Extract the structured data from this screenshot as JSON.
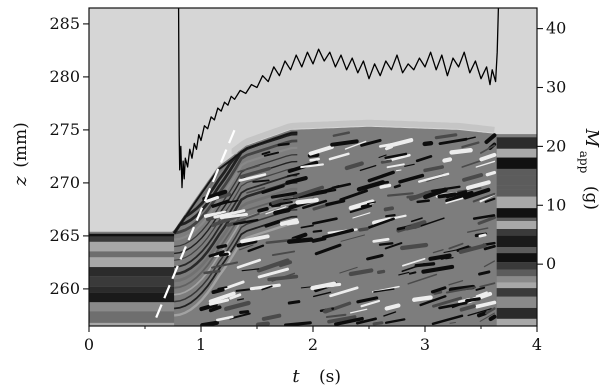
{
  "chart_data": {
    "type": "line",
    "grid": false,
    "background": "#d6d6d6",
    "x_axis": {
      "label": "t",
      "unit": "(s)",
      "range": [
        0,
        4
      ],
      "ticks": [
        "0",
        "1",
        "2",
        "3",
        "4"
      ]
    },
    "y_left": {
      "label": "z",
      "unit": "(mm)",
      "range": [
        256.5,
        286.5
      ],
      "ticks": [
        "260",
        "265",
        "270",
        "275",
        "280",
        "285"
      ]
    },
    "y_right": {
      "label": "M",
      "label_sub": "app",
      "unit": "(g)",
      "range": [
        -10.5,
        43.5
      ],
      "ticks": [
        "0",
        "10",
        "20",
        "30",
        "40"
      ]
    },
    "bed_surface": {
      "description_values": "initial height and rise of the granular layer",
      "points": [
        [
          0.0,
          265.4
        ],
        [
          0.75,
          265.4
        ],
        [
          0.95,
          268.5
        ],
        [
          1.15,
          271.5
        ],
        [
          1.4,
          273.5
        ],
        [
          1.8,
          275.0
        ],
        [
          2.5,
          275.3
        ],
        [
          3.3,
          275.0
        ],
        [
          3.65,
          274.6
        ],
        [
          4.0,
          274.6
        ]
      ]
    },
    "slope_line": {
      "style": "dashed",
      "color": "#ffffff",
      "x": [
        0.6,
        1.3
      ],
      "z": [
        257.3,
        275.0
      ]
    },
    "series": [
      {
        "color": "#000000",
        "points": [
          [
            0.8,
            43.5
          ],
          [
            0.805,
            22.0
          ],
          [
            0.81,
            16.0
          ],
          [
            0.82,
            20.0
          ],
          [
            0.83,
            13.0
          ],
          [
            0.84,
            17.5
          ],
          [
            0.85,
            14.5
          ],
          [
            0.86,
            18.0
          ],
          [
            0.88,
            16.5
          ],
          [
            0.9,
            19.5
          ],
          [
            0.92,
            18.0
          ],
          [
            0.94,
            20.5
          ],
          [
            0.96,
            19.5
          ],
          [
            0.98,
            22.0
          ],
          [
            1.0,
            21.0
          ],
          [
            1.03,
            23.5
          ],
          [
            1.06,
            23.0
          ],
          [
            1.09,
            25.0
          ],
          [
            1.12,
            24.5
          ],
          [
            1.15,
            26.5
          ],
          [
            1.18,
            26.0
          ],
          [
            1.21,
            27.5
          ],
          [
            1.24,
            27.0
          ],
          [
            1.27,
            28.5
          ],
          [
            1.3,
            28.0
          ],
          [
            1.35,
            29.5
          ],
          [
            1.4,
            29.0
          ],
          [
            1.45,
            30.5
          ],
          [
            1.5,
            30.0
          ],
          [
            1.55,
            32.0
          ],
          [
            1.6,
            31.0
          ],
          [
            1.65,
            33.5
          ],
          [
            1.7,
            32.0
          ],
          [
            1.75,
            34.5
          ],
          [
            1.8,
            33.0
          ],
          [
            1.85,
            35.5
          ],
          [
            1.9,
            33.5
          ],
          [
            1.95,
            36.0
          ],
          [
            2.0,
            34.0
          ],
          [
            2.05,
            36.5
          ],
          [
            2.1,
            34.5
          ],
          [
            2.15,
            36.0
          ],
          [
            2.2,
            33.5
          ],
          [
            2.25,
            35.5
          ],
          [
            2.3,
            33.0
          ],
          [
            2.35,
            35.0
          ],
          [
            2.4,
            32.5
          ],
          [
            2.45,
            34.5
          ],
          [
            2.5,
            31.5
          ],
          [
            2.55,
            34.0
          ],
          [
            2.6,
            32.0
          ],
          [
            2.65,
            34.5
          ],
          [
            2.7,
            33.0
          ],
          [
            2.75,
            35.5
          ],
          [
            2.8,
            32.5
          ],
          [
            2.85,
            34.0
          ],
          [
            2.9,
            33.0
          ],
          [
            2.95,
            35.0
          ],
          [
            3.0,
            33.5
          ],
          [
            3.05,
            36.0
          ],
          [
            3.1,
            33.0
          ],
          [
            3.15,
            35.5
          ],
          [
            3.2,
            32.0
          ],
          [
            3.25,
            35.0
          ],
          [
            3.3,
            33.5
          ],
          [
            3.35,
            36.0
          ],
          [
            3.4,
            32.5
          ],
          [
            3.45,
            34.5
          ],
          [
            3.5,
            31.5
          ],
          [
            3.55,
            33.5
          ],
          [
            3.58,
            30.5
          ],
          [
            3.6,
            33.0
          ],
          [
            3.63,
            31.0
          ],
          [
            3.645,
            36.0
          ],
          [
            3.655,
            43.5
          ]
        ]
      }
    ]
  }
}
